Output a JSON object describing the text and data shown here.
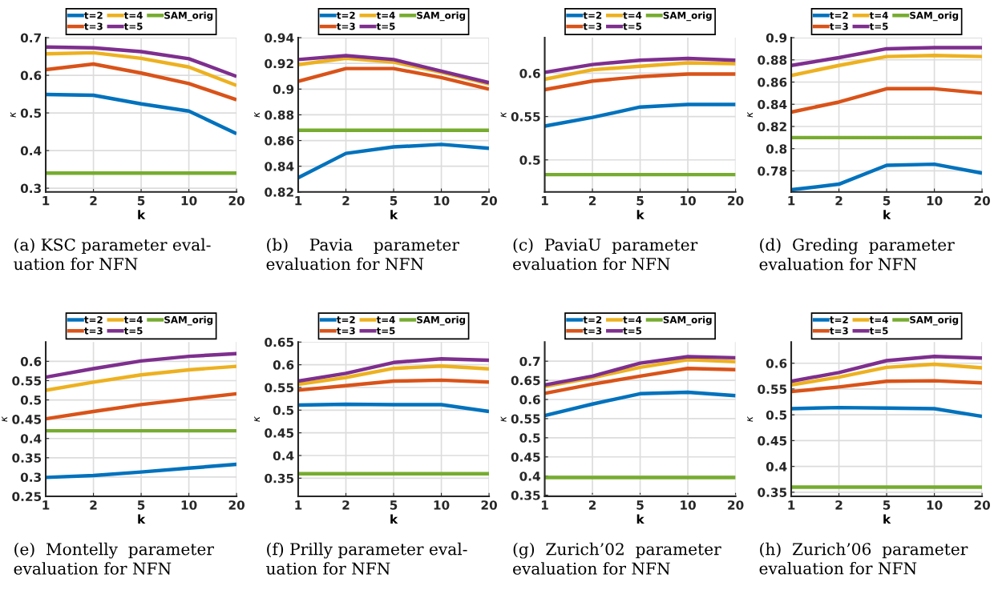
{
  "chart_data": [
    {
      "type": "line",
      "categories": [
        "1",
        "2",
        "5",
        "10",
        "20"
      ],
      "xlabel": "k",
      "ylabel": "κ",
      "ylim": [
        0.29,
        0.7
      ],
      "yticks": [
        0.3,
        0.4,
        0.5,
        0.6,
        0.7
      ],
      "grid": true,
      "legend": "top",
      "annotations": [
        "(a) KSC parameter eval-\nuation for NFN"
      ],
      "series": [
        {
          "name": "t=2",
          "color": "#0072bd",
          "values": [
            0.549,
            0.547,
            0.524,
            0.505,
            0.445
          ]
        },
        {
          "name": "t=3",
          "color": "#d95319",
          "values": [
            0.615,
            0.63,
            0.606,
            0.578,
            0.535
          ]
        },
        {
          "name": "t=4",
          "color": "#edb120",
          "values": [
            0.657,
            0.66,
            0.645,
            0.622,
            0.573
          ]
        },
        {
          "name": "t=5",
          "color": "#7e2f8e",
          "values": [
            0.675,
            0.673,
            0.663,
            0.644,
            0.597
          ]
        },
        {
          "name": "SAM_orig",
          "color": "#77ac30",
          "values": [
            0.34,
            0.34,
            0.34,
            0.34,
            0.34
          ]
        }
      ]
    },
    {
      "type": "line",
      "categories": [
        "1",
        "2",
        "5",
        "10",
        "20"
      ],
      "xlabel": "k",
      "ylabel": "κ",
      "ylim": [
        0.82,
        0.94
      ],
      "yticks": [
        0.82,
        0.84,
        0.86,
        0.88,
        0.9,
        0.92,
        0.94
      ],
      "grid": true,
      "legend": "top",
      "annotations": [
        "(b)    Pavia    parameter\nevaluation for NFN"
      ],
      "series": [
        {
          "name": "t=2",
          "color": "#0072bd",
          "values": [
            0.831,
            0.85,
            0.855,
            0.857,
            0.854
          ]
        },
        {
          "name": "t=3",
          "color": "#d95319",
          "values": [
            0.906,
            0.916,
            0.916,
            0.909,
            0.9
          ]
        },
        {
          "name": "t=4",
          "color": "#edb120",
          "values": [
            0.919,
            0.924,
            0.921,
            0.913,
            0.904
          ]
        },
        {
          "name": "t=5",
          "color": "#7e2f8e",
          "values": [
            0.923,
            0.926,
            0.923,
            0.914,
            0.905
          ]
        },
        {
          "name": "SAM_orig",
          "color": "#77ac30",
          "values": [
            0.868,
            0.868,
            0.868,
            0.868,
            0.868
          ]
        }
      ]
    },
    {
      "type": "line",
      "categories": [
        "1",
        "2",
        "5",
        "10",
        "20"
      ],
      "xlabel": "k",
      "ylabel": "κ",
      "ylim": [
        0.463,
        0.641
      ],
      "yticks": [
        0.5,
        0.55,
        0.6
      ],
      "grid": true,
      "legend": "top",
      "annotations": [
        "(c)  PaviaU  parameter\nevaluation for NFN"
      ],
      "series": [
        {
          "name": "t=2",
          "color": "#0072bd",
          "values": [
            0.539,
            0.549,
            0.561,
            0.564,
            0.564
          ]
        },
        {
          "name": "t=3",
          "color": "#d95319",
          "values": [
            0.581,
            0.591,
            0.596,
            0.599,
            0.599
          ]
        },
        {
          "name": "t=4",
          "color": "#edb120",
          "values": [
            0.593,
            0.604,
            0.608,
            0.612,
            0.611
          ]
        },
        {
          "name": "t=5",
          "color": "#7e2f8e",
          "values": [
            0.601,
            0.61,
            0.615,
            0.617,
            0.615
          ]
        },
        {
          "name": "SAM_orig",
          "color": "#77ac30",
          "values": [
            0.483,
            0.483,
            0.483,
            0.483,
            0.483
          ]
        }
      ]
    },
    {
      "type": "line",
      "categories": [
        "1",
        "2",
        "5",
        "10",
        "20"
      ],
      "xlabel": "k",
      "ylabel": "κ",
      "ylim": [
        0.761,
        0.9
      ],
      "yticks": [
        0.78,
        0.8,
        0.82,
        0.84,
        0.86,
        0.88,
        0.9
      ],
      "grid": true,
      "legend": "top",
      "annotations": [
        "(d)  Greding  parameter\nevaluation for NFN"
      ],
      "series": [
        {
          "name": "t=2",
          "color": "#0072bd",
          "values": [
            0.763,
            0.768,
            0.785,
            0.786,
            0.778
          ]
        },
        {
          "name": "t=3",
          "color": "#d95319",
          "values": [
            0.833,
            0.842,
            0.854,
            0.854,
            0.85
          ]
        },
        {
          "name": "t=4",
          "color": "#edb120",
          "values": [
            0.866,
            0.875,
            0.883,
            0.884,
            0.883
          ]
        },
        {
          "name": "t=5",
          "color": "#7e2f8e",
          "values": [
            0.875,
            0.882,
            0.89,
            0.891,
            0.891
          ]
        },
        {
          "name": "SAM_orig",
          "color": "#77ac30",
          "values": [
            0.81,
            0.81,
            0.81,
            0.81,
            0.81
          ]
        }
      ]
    },
    {
      "type": "line",
      "categories": [
        "1",
        "2",
        "5",
        "10",
        "20"
      ],
      "xlabel": "k",
      "ylabel": "κ",
      "ylim": [
        0.25,
        0.65
      ],
      "yticks": [
        0.25,
        0.3,
        0.35,
        0.4,
        0.45,
        0.5,
        0.55,
        0.6
      ],
      "grid": true,
      "legend": "top",
      "annotations": [
        "(e)  Montelly  parameter\nevaluation for NFN"
      ],
      "series": [
        {
          "name": "t=2",
          "color": "#0072bd",
          "values": [
            0.299,
            0.304,
            0.313,
            0.323,
            0.333
          ]
        },
        {
          "name": "t=3",
          "color": "#d95319",
          "values": [
            0.451,
            0.47,
            0.488,
            0.502,
            0.516
          ]
        },
        {
          "name": "t=4",
          "color": "#edb120",
          "values": [
            0.525,
            0.546,
            0.565,
            0.578,
            0.587
          ]
        },
        {
          "name": "t=5",
          "color": "#7e2f8e",
          "values": [
            0.559,
            0.581,
            0.601,
            0.613,
            0.62
          ]
        },
        {
          "name": "SAM_orig",
          "color": "#77ac30",
          "values": [
            0.42,
            0.42,
            0.42,
            0.42,
            0.42
          ]
        }
      ]
    },
    {
      "type": "line",
      "categories": [
        "1",
        "2",
        "5",
        "10",
        "20"
      ],
      "xlabel": "k",
      "ylabel": "κ",
      "ylim": [
        0.31,
        0.65
      ],
      "yticks": [
        0.35,
        0.4,
        0.45,
        0.5,
        0.55,
        0.6,
        0.65
      ],
      "grid": true,
      "legend": "top",
      "annotations": [
        "(f) Prilly parameter eval-\nuation for NFN"
      ],
      "series": [
        {
          "name": "t=2",
          "color": "#0072bd",
          "values": [
            0.511,
            0.513,
            0.512,
            0.512,
            0.497
          ]
        },
        {
          "name": "t=3",
          "color": "#d95319",
          "values": [
            0.544,
            0.554,
            0.564,
            0.566,
            0.562
          ]
        },
        {
          "name": "t=4",
          "color": "#edb120",
          "values": [
            0.557,
            0.572,
            0.592,
            0.597,
            0.591
          ]
        },
        {
          "name": "t=5",
          "color": "#7e2f8e",
          "values": [
            0.564,
            0.581,
            0.605,
            0.613,
            0.61
          ]
        },
        {
          "name": "SAM_orig",
          "color": "#77ac30",
          "values": [
            0.36,
            0.36,
            0.36,
            0.36,
            0.36
          ]
        }
      ]
    },
    {
      "type": "line",
      "categories": [
        "1",
        "2",
        "5",
        "10",
        "20"
      ],
      "xlabel": "k",
      "ylabel": "κ",
      "ylim": [
        0.347,
        0.75
      ],
      "yticks": [
        0.35,
        0.4,
        0.45,
        0.5,
        0.55,
        0.6,
        0.65,
        0.7
      ],
      "grid": true,
      "legend": "top",
      "annotations": [
        "(g)  Zurich’02  parameter\nevaluation for NFN"
      ],
      "series": [
        {
          "name": "t=2",
          "color": "#0072bd",
          "values": [
            0.558,
            0.588,
            0.615,
            0.619,
            0.61
          ]
        },
        {
          "name": "t=3",
          "color": "#d95319",
          "values": [
            0.616,
            0.64,
            0.661,
            0.681,
            0.678
          ]
        },
        {
          "name": "t=4",
          "color": "#edb120",
          "values": [
            0.634,
            0.657,
            0.684,
            0.704,
            0.699
          ]
        },
        {
          "name": "t=5",
          "color": "#7e2f8e",
          "values": [
            0.638,
            0.661,
            0.695,
            0.712,
            0.709
          ]
        },
        {
          "name": "SAM_orig",
          "color": "#77ac30",
          "values": [
            0.396,
            0.396,
            0.396,
            0.396,
            0.396
          ]
        }
      ]
    },
    {
      "type": "line",
      "categories": [
        "1",
        "2",
        "5",
        "10",
        "20"
      ],
      "xlabel": "k",
      "ylabel": "κ",
      "ylim": [
        0.342,
        0.641
      ],
      "yticks": [
        0.35,
        0.4,
        0.45,
        0.5,
        0.55,
        0.6
      ],
      "grid": true,
      "legend": "top",
      "annotations": [
        "(h)  Zurich’06  parameter\nevaluation for NFN"
      ],
      "series": [
        {
          "name": "t=2",
          "color": "#0072bd",
          "values": [
            0.512,
            0.514,
            0.513,
            0.512,
            0.497
          ]
        },
        {
          "name": "t=3",
          "color": "#d95319",
          "values": [
            0.545,
            0.554,
            0.565,
            0.566,
            0.562
          ]
        },
        {
          "name": "t=4",
          "color": "#edb120",
          "values": [
            0.558,
            0.573,
            0.592,
            0.598,
            0.591
          ]
        },
        {
          "name": "t=5",
          "color": "#7e2f8e",
          "values": [
            0.565,
            0.582,
            0.605,
            0.613,
            0.61
          ]
        },
        {
          "name": "SAM_orig",
          "color": "#77ac30",
          "values": [
            0.36,
            0.36,
            0.36,
            0.36,
            0.36
          ]
        }
      ]
    }
  ]
}
